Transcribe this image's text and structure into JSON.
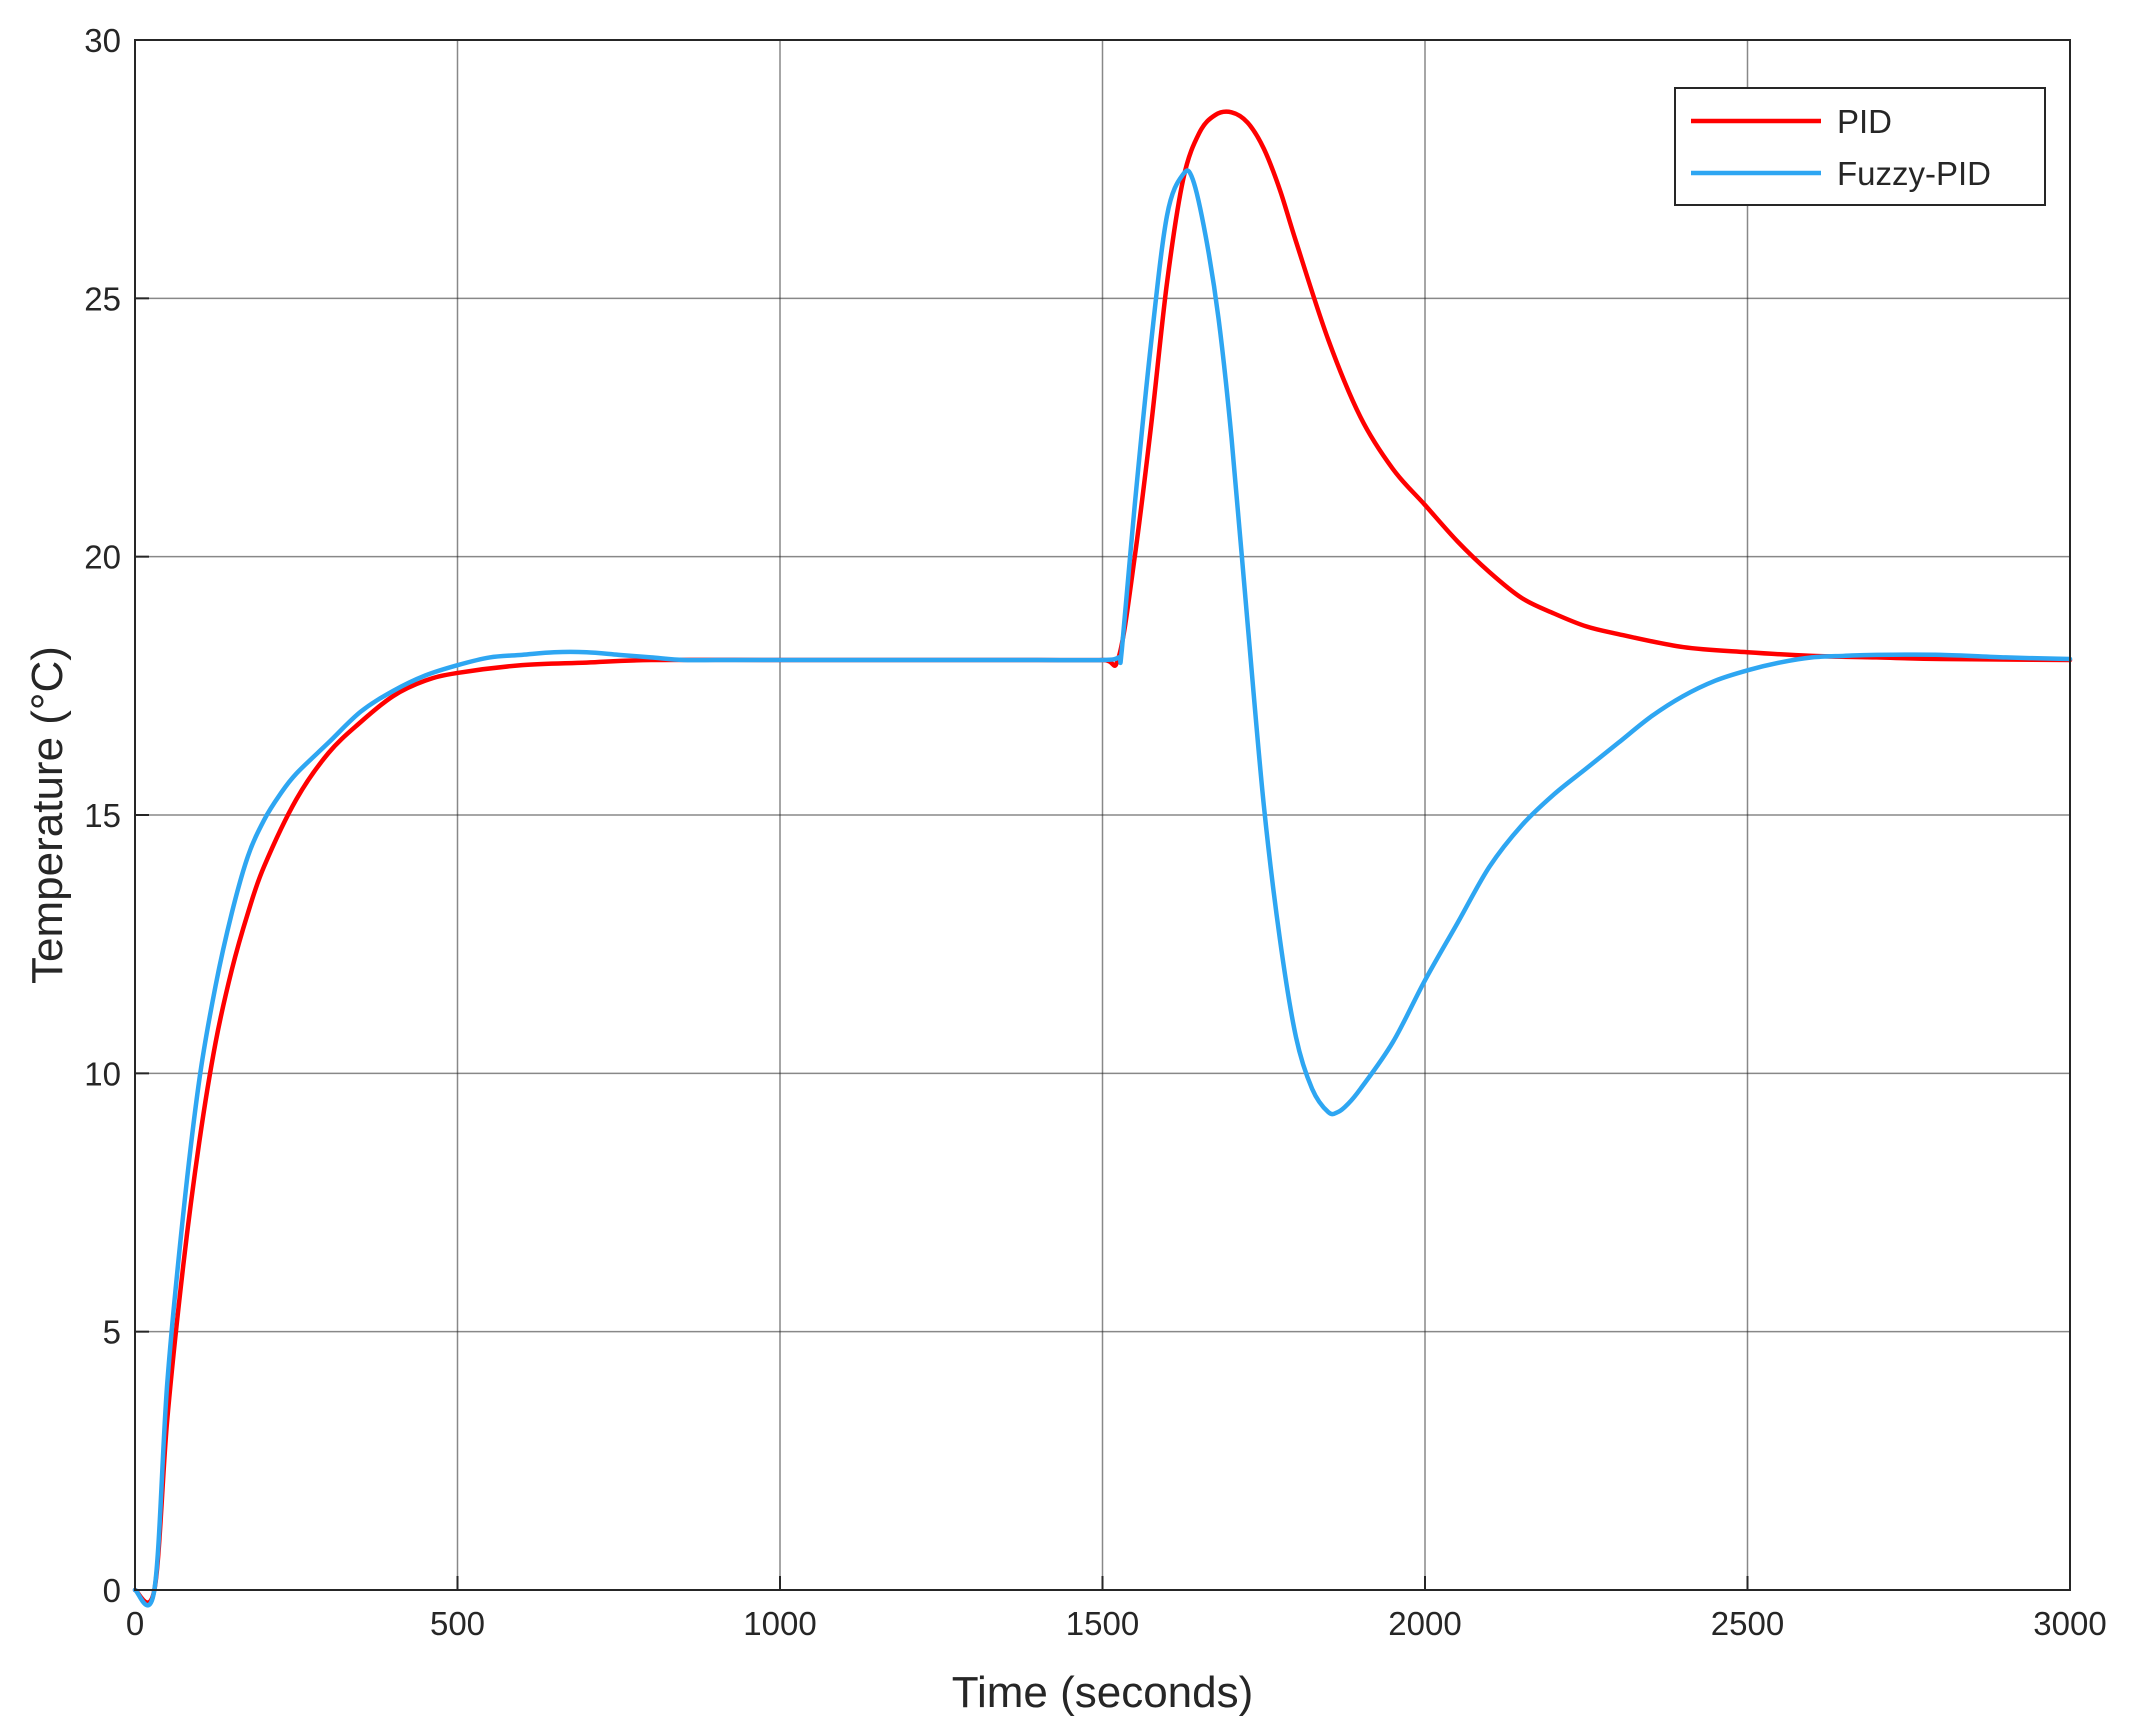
{
  "chart_data": {
    "type": "line",
    "title": "",
    "xlabel": "Time (seconds)",
    "ylabel": "Temperature (°C)",
    "xlim": [
      0,
      3000
    ],
    "ylim": [
      0,
      30
    ],
    "xticks": [
      0,
      500,
      1000,
      1500,
      2000,
      2500,
      3000
    ],
    "yticks": [
      0,
      5,
      10,
      15,
      20,
      25,
      30
    ],
    "grid": true,
    "legend": "top-right",
    "series": [
      {
        "name": "PID",
        "color": "#ff0000",
        "x": [
          0,
          30,
          50,
          75,
          100,
          125,
          150,
          175,
          200,
          250,
          300,
          350,
          400,
          450,
          500,
          600,
          700,
          800,
          1000,
          1200,
          1400,
          1500,
          1525,
          1550,
          1575,
          1600,
          1625,
          1650,
          1675,
          1700,
          1725,
          1750,
          1775,
          1800,
          1850,
          1900,
          1950,
          2000,
          2050,
          2100,
          2150,
          2200,
          2250,
          2300,
          2400,
          2500,
          2600,
          2700,
          2800,
          3000
        ],
        "y": [
          0,
          0,
          3.3,
          6.3,
          8.7,
          10.6,
          12.0,
          13.1,
          14.0,
          15.3,
          16.2,
          16.8,
          17.3,
          17.6,
          17.75,
          17.9,
          17.95,
          18.0,
          18.0,
          18.0,
          18.0,
          18.0,
          18.05,
          20.0,
          22.5,
          25.3,
          27.3,
          28.2,
          28.55,
          28.6,
          28.4,
          27.9,
          27.1,
          26.1,
          24.2,
          22.7,
          21.7,
          21.0,
          20.3,
          19.7,
          19.2,
          18.9,
          18.65,
          18.5,
          18.25,
          18.15,
          18.08,
          18.05,
          18.02,
          18.0
        ]
      },
      {
        "name": "Fuzzy-PID",
        "color": "#2ea6f2",
        "x": [
          0,
          30,
          50,
          75,
          100,
          125,
          150,
          175,
          200,
          225,
          250,
          300,
          350,
          400,
          450,
          500,
          550,
          600,
          650,
          700,
          750,
          800,
          850,
          900,
          1000,
          1200,
          1400,
          1500,
          1525,
          1530,
          1550,
          1575,
          1600,
          1625,
          1640,
          1660,
          1680,
          1700,
          1725,
          1750,
          1775,
          1800,
          1825,
          1850,
          1865,
          1880,
          1900,
          1950,
          2000,
          2050,
          2100,
          2150,
          2200,
          2250,
          2300,
          2350,
          2400,
          2450,
          2500,
          2550,
          2600,
          2650,
          2700,
          2800,
          2900,
          3000
        ],
        "y": [
          0,
          0,
          4.0,
          7.3,
          9.9,
          11.7,
          13.1,
          14.2,
          14.9,
          15.4,
          15.8,
          16.4,
          17.0,
          17.4,
          17.7,
          17.9,
          18.05,
          18.1,
          18.15,
          18.15,
          18.1,
          18.05,
          18.0,
          18.0,
          18.0,
          18.0,
          18.0,
          18.0,
          18.05,
          18.2,
          21.0,
          24.1,
          26.6,
          27.4,
          27.3,
          26.2,
          24.6,
          22.3,
          18.7,
          15.2,
          12.6,
          10.7,
          9.7,
          9.25,
          9.25,
          9.4,
          9.7,
          10.6,
          11.8,
          12.9,
          14.0,
          14.8,
          15.4,
          15.9,
          16.4,
          16.9,
          17.3,
          17.6,
          17.8,
          17.95,
          18.05,
          18.08,
          18.1,
          18.1,
          18.05,
          18.02
        ]
      }
    ]
  }
}
